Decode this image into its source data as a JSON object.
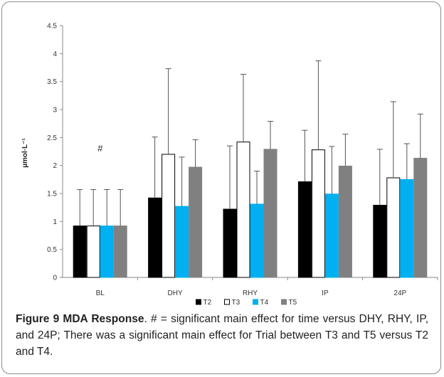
{
  "chart_data": {
    "type": "bar",
    "categories": [
      "BL",
      "DHY",
      "RHY",
      "IP",
      "24P"
    ],
    "ylabel": "µmol·L⁻¹",
    "ylim": [
      0,
      4.5
    ],
    "yticks": [
      "0",
      "0.5",
      "1",
      "1.5",
      "2",
      "2.5",
      "3",
      "3.5",
      "4",
      "4.5"
    ],
    "ytick_values": [
      0,
      0.5,
      1,
      1.5,
      2,
      2.5,
      3,
      3.5,
      4,
      4.5
    ],
    "grid": false,
    "legend_position": "bottom",
    "series": [
      {
        "name": "T2",
        "color": "#000000",
        "stroke": "#000000",
        "values": [
          0.92,
          1.42,
          1.22,
          1.71,
          1.29
        ],
        "errors": [
          0.65,
          1.09,
          1.13,
          0.92,
          1.0
        ]
      },
      {
        "name": "T3",
        "color": "#ffffff",
        "stroke": "#000000",
        "values": [
          0.92,
          2.2,
          2.42,
          2.28,
          1.78
        ],
        "errors": [
          0.65,
          1.53,
          1.21,
          1.59,
          1.36
        ]
      },
      {
        "name": "T4",
        "color": "#00b0f0",
        "stroke": "#00b0f0",
        "values": [
          0.92,
          1.27,
          1.31,
          1.49,
          1.75
        ],
        "errors": [
          0.65,
          0.88,
          0.59,
          0.85,
          0.64
        ]
      },
      {
        "name": "T5",
        "color": "#808080",
        "stroke": "#808080",
        "values": [
          0.92,
          1.97,
          2.29,
          1.99,
          2.13
        ],
        "errors": [
          0.65,
          0.49,
          0.5,
          0.57,
          0.79
        ]
      }
    ],
    "annotations": [
      {
        "category": "BL",
        "text": "#",
        "y": 2.3
      }
    ]
  },
  "caption": {
    "figure_label": "Figure 9",
    "title": "MDA Response",
    "text": ". # = significant main effect for time versus DHY, RHY, IP, and 24P; There was a significant main effect for Trial between T3 and T5 versus T2 and T4."
  }
}
